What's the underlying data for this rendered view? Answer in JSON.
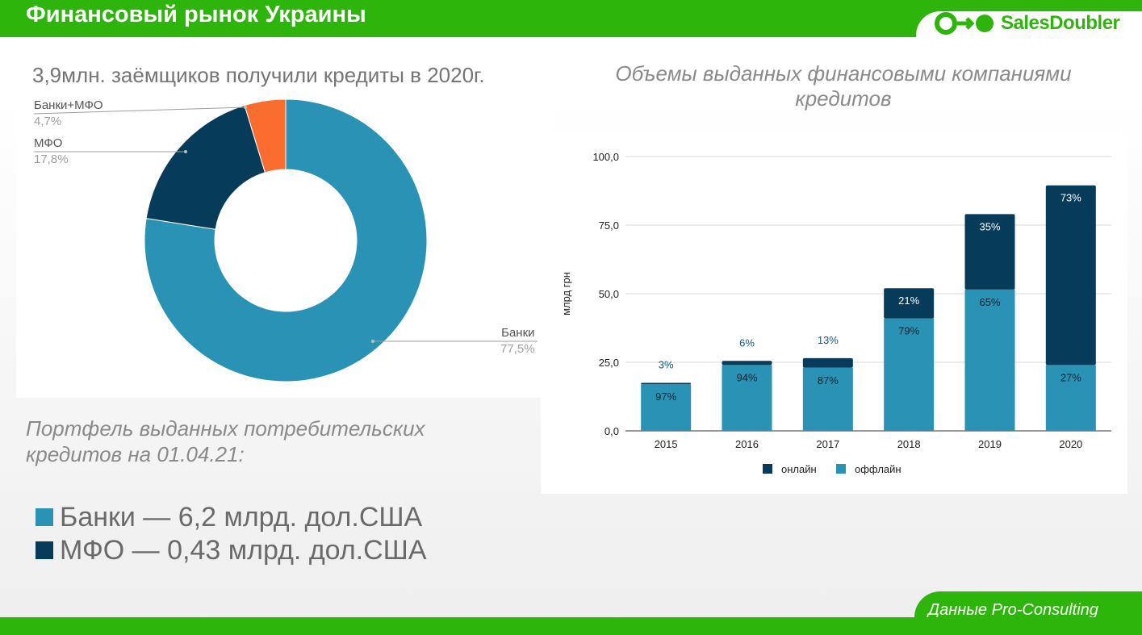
{
  "header": {
    "title": "Финансовый рынок Украины",
    "logo_text": "SalesDoubler"
  },
  "donut": {
    "title": "3,9млн. заёмщиков получили кредиты в 2020г.",
    "slices": [
      {
        "label": "Банки",
        "pct_label": "77,5%",
        "value": 77.5,
        "color": "#2a93b5"
      },
      {
        "label": "МФО",
        "pct_label": "17,8%",
        "value": 17.8,
        "color": "#063b5a"
      },
      {
        "label": "Банки+МФО",
        "pct_label": "4,7%",
        "value": 4.7,
        "color": "#fb6d2f"
      }
    ]
  },
  "volume": {
    "title": "Объемы выданных финансовыми компаниями кредитов"
  },
  "chart_data": [
    {
      "type": "pie",
      "title": "3,9млн. заёмщиков получили кредиты в 2020г.",
      "categories": [
        "Банки",
        "МФО",
        "Банки+МФО"
      ],
      "values": [
        77.5,
        17.8,
        4.7
      ]
    },
    {
      "type": "bar",
      "stacked": true,
      "title": "Объемы выданных финансовыми компаниями кредитов",
      "categories": [
        "2015",
        "2016",
        "2017",
        "2018",
        "2019",
        "2020"
      ],
      "totals": [
        17.5,
        25.5,
        26.5,
        52,
        79,
        89.5
      ],
      "series": [
        {
          "name": "оффлайн",
          "color": "#2a93b5",
          "values": [
            17,
            24,
            23,
            41,
            51.5,
            24
          ],
          "labels": [
            "97%",
            "94%",
            "87%",
            "79%",
            "65%",
            "27%"
          ]
        },
        {
          "name": "онлайн",
          "color": "#063b5a",
          "values": [
            0.5,
            1.5,
            3.5,
            11,
            27.5,
            65.5
          ],
          "labels": [
            "3%",
            "6%",
            "13%",
            "21%",
            "35%",
            "73%"
          ]
        }
      ],
      "ylabel": "млрд грн",
      "ylim": [
        0,
        100
      ],
      "yticks": [
        "0,0",
        "25,0",
        "50,0",
        "75,0",
        "100,0"
      ],
      "legend": [
        "онлайн",
        "оффлайн"
      ]
    }
  ],
  "portfolio": {
    "title": "Портфель выданных потребительских кредитов на 01.04.21:",
    "items": [
      {
        "text": "Банки — 6,2 млрд. дол.США",
        "color": "#2a93b5"
      },
      {
        "text": "МФО — 0,43 млрд. дол.США",
        "color": "#063b5a"
      }
    ]
  },
  "footer": {
    "source": "Данные Pro-Consulting"
  }
}
